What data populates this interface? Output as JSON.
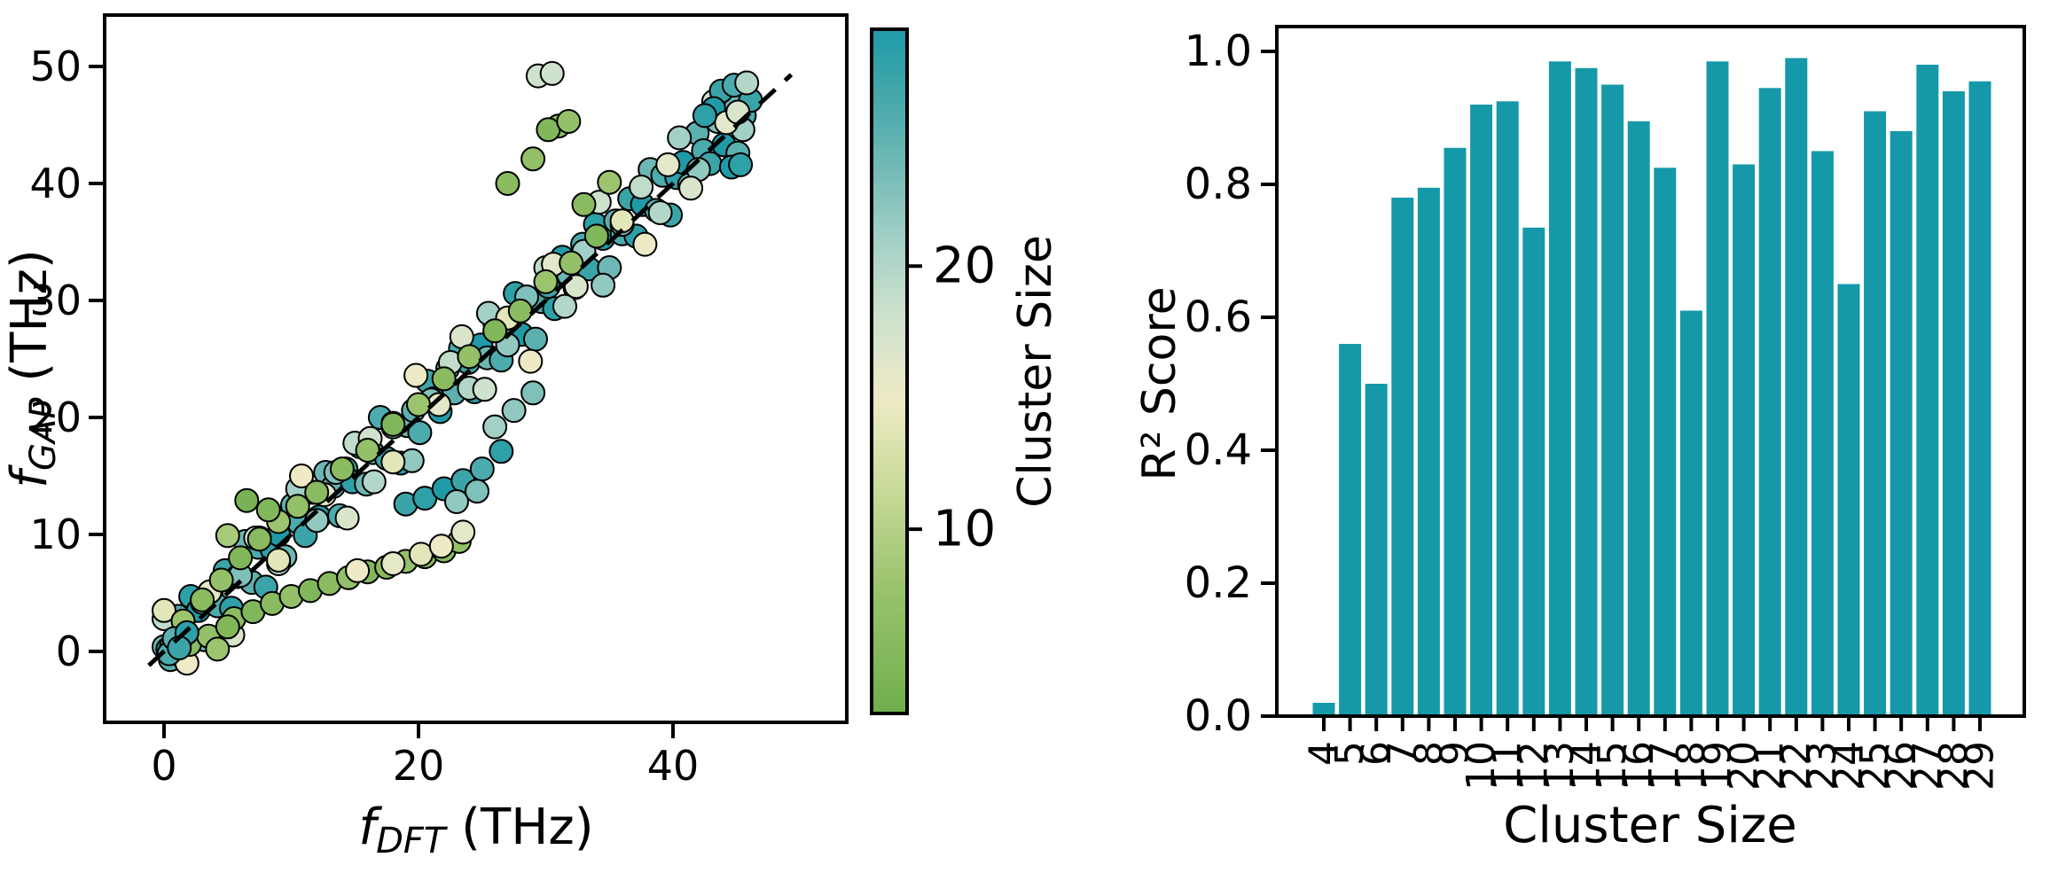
{
  "page": {
    "background": "#ffffff",
    "accent_teal": "#1599a8",
    "edge_color": "#000000"
  },
  "colorbar": {
    "label": "Cluster Size",
    "ticks": [
      10,
      20
    ],
    "range": [
      3,
      29
    ],
    "colormap_stops": [
      [
        3,
        "#6fae4d"
      ],
      [
        8,
        "#9cc46f"
      ],
      [
        12,
        "#cedd9e"
      ],
      [
        15,
        "#eeeac6"
      ],
      [
        18,
        "#cfe2cd"
      ],
      [
        21,
        "#a3d0c6"
      ],
      [
        24,
        "#6db8b4"
      ],
      [
        27,
        "#3ba4a8"
      ],
      [
        29,
        "#1f9ba8"
      ]
    ]
  },
  "chart_data": [
    {
      "type": "scatter",
      "xlabel_f": "f",
      "xlabel_sub": "DFT",
      "xlabel_unit": " (THz)",
      "ylabel_f": "f",
      "ylabel_sub": "GAP",
      "ylabel_unit": " (THz)",
      "xticks": [
        0,
        20,
        40
      ],
      "yticks": [
        0,
        10,
        20,
        30,
        40,
        50
      ],
      "xlim": [
        -4.7,
        53.7
      ],
      "ylim": [
        -6.1,
        54.4
      ],
      "identity_line": {
        "style": "dashed",
        "color": "#000000",
        "from": -1.2,
        "to": 49.3
      },
      "marker": {
        "radius_px": 13,
        "edge_color": "#000000",
        "edge_width": 2
      },
      "points": [
        [
          0,
          0.4,
          24
        ],
        [
          0.5,
          -0.7,
          25
        ],
        [
          1.1,
          3,
          26
        ],
        [
          1.6,
          0.9,
          27
        ],
        [
          2.1,
          4.7,
          28
        ],
        [
          2.7,
          3.5,
          29
        ],
        [
          3.2,
          1,
          24
        ],
        [
          3.7,
          5,
          25
        ],
        [
          4.2,
          3.9,
          26
        ],
        [
          4.8,
          6.9,
          27
        ],
        [
          5.3,
          3.7,
          28
        ],
        [
          5.8,
          6.4,
          29
        ],
        [
          6.4,
          9.4,
          24
        ],
        [
          6.9,
          5.9,
          25
        ],
        [
          7.4,
          8.9,
          26
        ],
        [
          8,
          5.5,
          27
        ],
        [
          8.5,
          8.7,
          28
        ],
        [
          9,
          10,
          29
        ],
        [
          9.5,
          8.1,
          24
        ],
        [
          10.1,
          12.5,
          25
        ],
        [
          10.6,
          11,
          26
        ],
        [
          11.1,
          9.9,
          27
        ],
        [
          11.7,
          13.6,
          28
        ],
        [
          12.2,
          11.5,
          29
        ],
        [
          12.7,
          15.3,
          24
        ],
        [
          13.3,
          14.1,
          25
        ],
        [
          13.8,
          11.6,
          26
        ],
        [
          14.3,
          15.6,
          27
        ],
        [
          14.8,
          14.5,
          28
        ],
        [
          15.4,
          17.5,
          29
        ],
        [
          15.9,
          14.3,
          24
        ],
        [
          16.4,
          17,
          25
        ],
        [
          17,
          20,
          26
        ],
        [
          17.5,
          16.5,
          27
        ],
        [
          18,
          19.5,
          28
        ],
        [
          18.6,
          16.1,
          29
        ],
        [
          19.1,
          19.3,
          24
        ],
        [
          19.6,
          20.6,
          25
        ],
        [
          20.1,
          18.7,
          26
        ],
        [
          20.7,
          23.1,
          27
        ],
        [
          21.2,
          21.6,
          28
        ],
        [
          21.7,
          20.5,
          29
        ],
        [
          22.3,
          24.2,
          24
        ],
        [
          22.8,
          22.1,
          25
        ],
        [
          23.3,
          25.9,
          26
        ],
        [
          23.9,
          24.7,
          27
        ],
        [
          24.4,
          22.2,
          28
        ],
        [
          24.9,
          26.2,
          29
        ],
        [
          25.4,
          25.1,
          24
        ],
        [
          26,
          28.1,
          25
        ],
        [
          26.5,
          24.9,
          26
        ],
        [
          27,
          27.6,
          27
        ],
        [
          27.6,
          30.6,
          28
        ],
        [
          28.1,
          27.1,
          29
        ],
        [
          28.6,
          30.1,
          24
        ],
        [
          29.2,
          26.7,
          25
        ],
        [
          29.7,
          29.9,
          26
        ],
        [
          30.2,
          31.2,
          27
        ],
        [
          30.7,
          29.3,
          28
        ],
        [
          31.3,
          33.7,
          29
        ],
        [
          31.8,
          32.2,
          24
        ],
        [
          32.3,
          31.1,
          25
        ],
        [
          32.9,
          34.8,
          26
        ],
        [
          33.4,
          32.7,
          27
        ],
        [
          33.9,
          36.5,
          28
        ],
        [
          34.5,
          35.3,
          29
        ],
        [
          35,
          32.8,
          24
        ],
        [
          35.5,
          36.8,
          25
        ],
        [
          36,
          35.7,
          26
        ],
        [
          36.6,
          38.7,
          27
        ],
        [
          37.1,
          35.5,
          28
        ],
        [
          37.6,
          38.2,
          29
        ],
        [
          38.2,
          41.2,
          24
        ],
        [
          38.7,
          37.7,
          25
        ],
        [
          39.2,
          40.7,
          26
        ],
        [
          39.8,
          37.3,
          27
        ],
        [
          40.3,
          40.5,
          28
        ],
        [
          40.8,
          41.8,
          29
        ],
        [
          41.3,
          39.9,
          24
        ],
        [
          41.9,
          44.3,
          25
        ],
        [
          42.4,
          42.8,
          26
        ],
        [
          42.9,
          41.7,
          27
        ],
        [
          43.5,
          46.1,
          28
        ],
        [
          44,
          43.3,
          29
        ],
        [
          44.5,
          47.1,
          24
        ],
        [
          45.1,
          42.6,
          25
        ],
        [
          45.6,
          45.8,
          26
        ],
        [
          46.1,
          47.1,
          27
        ],
        [
          0,
          2.8,
          19
        ],
        [
          1.5,
          -0.5,
          20
        ],
        [
          3,
          4.2,
          21
        ],
        [
          4.5,
          1.3,
          22
        ],
        [
          6,
          6.5,
          23
        ],
        [
          7.5,
          9.7,
          19
        ],
        [
          9,
          7.5,
          20
        ],
        [
          10.5,
          13.9,
          21
        ],
        [
          12,
          11.2,
          22
        ],
        [
          13.5,
          15.3,
          23
        ],
        [
          15,
          17.8,
          19
        ],
        [
          16.5,
          14.5,
          20
        ],
        [
          18,
          19.2,
          21
        ],
        [
          19.5,
          16.3,
          22
        ],
        [
          21,
          21.5,
          23
        ],
        [
          22.5,
          24.7,
          19
        ],
        [
          24,
          22.5,
          20
        ],
        [
          25.5,
          28.9,
          21
        ],
        [
          27,
          26.2,
          22
        ],
        [
          28.5,
          30.3,
          23
        ],
        [
          30,
          32.8,
          19
        ],
        [
          31.5,
          29.5,
          20
        ],
        [
          33,
          34.2,
          21
        ],
        [
          34.5,
          31.3,
          22
        ],
        [
          36,
          36.5,
          23
        ],
        [
          37.5,
          39.7,
          19
        ],
        [
          39,
          37.5,
          20
        ],
        [
          40.5,
          43.9,
          21
        ],
        [
          42,
          41.2,
          22
        ],
        [
          43.5,
          45.3,
          23
        ],
        [
          0,
          3.5,
          14
        ],
        [
          1.8,
          -1,
          15
        ],
        [
          3.6,
          5.1,
          16
        ],
        [
          5.4,
          1.4,
          17
        ],
        [
          7.2,
          9.7,
          18
        ],
        [
          9,
          7.8,
          14
        ],
        [
          10.8,
          15,
          15
        ],
        [
          12.6,
          13.4,
          16
        ],
        [
          14.4,
          11.4,
          17
        ],
        [
          16.2,
          18.2,
          18
        ],
        [
          18,
          16.2,
          14
        ],
        [
          19.8,
          23.6,
          15
        ],
        [
          21.6,
          21.1,
          16
        ],
        [
          23.4,
          26.9,
          17
        ],
        [
          25.2,
          22.4,
          18
        ],
        [
          27,
          28.5,
          14
        ],
        [
          28.8,
          24.8,
          15
        ],
        [
          30.6,
          33.1,
          16
        ],
        [
          32.4,
          31.2,
          17
        ],
        [
          34.2,
          38.4,
          18
        ],
        [
          36,
          36.8,
          14
        ],
        [
          37.8,
          34.8,
          15
        ],
        [
          39.6,
          41.6,
          16
        ],
        [
          41.4,
          39.6,
          17
        ],
        [
          43.2,
          47,
          18
        ],
        [
          5.5,
          2.8,
          6
        ],
        [
          7,
          3.4,
          5
        ],
        [
          8.5,
          4.1,
          6
        ],
        [
          10,
          4.7,
          7
        ],
        [
          11.5,
          5.2,
          5
        ],
        [
          13,
          5.8,
          6
        ],
        [
          14.5,
          6.3,
          7
        ],
        [
          16,
          6.8,
          5
        ],
        [
          17.5,
          7.2,
          6
        ],
        [
          19,
          7.7,
          7
        ],
        [
          20.5,
          8.1,
          5
        ],
        [
          22,
          8.6,
          6
        ],
        [
          23.2,
          9.4,
          7
        ],
        [
          15.2,
          6.9,
          15
        ],
        [
          18,
          7.5,
          16
        ],
        [
          20.2,
          8.3,
          14
        ],
        [
          21.8,
          9,
          15
        ],
        [
          23.5,
          10.2,
          16
        ],
        [
          1.5,
          2.6,
          8
        ],
        [
          3,
          4.4,
          6
        ],
        [
          4.5,
          6.1,
          7
        ],
        [
          6,
          8,
          5
        ],
        [
          7.5,
          9.6,
          6
        ],
        [
          9,
          11.1,
          8
        ],
        [
          10.5,
          12.4,
          7
        ],
        [
          12,
          13.6,
          6
        ],
        [
          6.5,
          12.9,
          4
        ],
        [
          8.2,
          12.1,
          5
        ],
        [
          5,
          9.9,
          9
        ],
        [
          14,
          15.6,
          6
        ],
        [
          16,
          17.2,
          7
        ],
        [
          18,
          19.4,
          5
        ],
        [
          20,
          21.1,
          8
        ],
        [
          22,
          23.3,
          6
        ],
        [
          24,
          25.2,
          7
        ],
        [
          26,
          27.4,
          5
        ],
        [
          28,
          29.1,
          6
        ],
        [
          30,
          31.6,
          8
        ],
        [
          32,
          33.2,
          7
        ],
        [
          34,
          35.5,
          5
        ],
        [
          27,
          40,
          6
        ],
        [
          29,
          42.1,
          7
        ],
        [
          31,
          44.9,
          6
        ],
        [
          30.2,
          44.6,
          5
        ],
        [
          31.8,
          45.3,
          7
        ],
        [
          33,
          38.2,
          6
        ],
        [
          35,
          40.1,
          8
        ],
        [
          2,
          0.6,
          6
        ],
        [
          3.5,
          1.3,
          7
        ],
        [
          5,
          2.1,
          5
        ],
        [
          4.2,
          0.2,
          8
        ],
        [
          29.4,
          49.2,
          18
        ],
        [
          30.5,
          49.4,
          18
        ],
        [
          44.6,
          41.4,
          29
        ],
        [
          45.3,
          41.6,
          28
        ],
        [
          43.8,
          47.9,
          27
        ],
        [
          44.8,
          48.4,
          26
        ],
        [
          43.2,
          46.4,
          29
        ],
        [
          45.5,
          44.6,
          21
        ],
        [
          44.2,
          45.2,
          16
        ],
        [
          45.1,
          46.1,
          17
        ],
        [
          42.5,
          45.8,
          28
        ],
        [
          45.8,
          48.6,
          20
        ],
        [
          19,
          12.6,
          27
        ],
        [
          20.5,
          13.1,
          28
        ],
        [
          22,
          13.9,
          29
        ],
        [
          23.5,
          14.6,
          27
        ],
        [
          25,
          15.6,
          26
        ],
        [
          26.5,
          17.1,
          28
        ],
        [
          23,
          12.8,
          22
        ],
        [
          24.6,
          13.7,
          23
        ],
        [
          26,
          19.2,
          21
        ],
        [
          27.5,
          20.6,
          22
        ],
        [
          29,
          22.1,
          23
        ],
        [
          0.3,
          0.2,
          29
        ],
        [
          0.6,
          0.5,
          28
        ],
        [
          1,
          0.8,
          27
        ],
        [
          0.4,
          -0.2,
          26
        ],
        [
          1.4,
          1.2,
          29
        ],
        [
          0.8,
          1.1,
          25
        ],
        [
          1.8,
          1.6,
          28
        ],
        [
          1.2,
          0.3,
          27
        ]
      ]
    },
    {
      "type": "bar",
      "xlabel": "Cluster Size",
      "ylabel": "R² Score",
      "categories": [
        4,
        5,
        6,
        7,
        8,
        9,
        10,
        11,
        12,
        13,
        14,
        15,
        16,
        17,
        18,
        19,
        20,
        21,
        22,
        23,
        24,
        25,
        26,
        27,
        28,
        29
      ],
      "values": [
        0.02,
        0.56,
        0.5,
        0.78,
        0.795,
        0.855,
        0.92,
        0.925,
        0.735,
        0.985,
        0.975,
        0.95,
        0.895,
        0.825,
        0.61,
        0.985,
        0.83,
        0.945,
        0.99,
        0.85,
        0.65,
        0.91,
        0.88,
        0.98,
        0.94,
        0.955
      ],
      "yticks": [
        0.0,
        0.2,
        0.4,
        0.6,
        0.8,
        1.0
      ],
      "ylim": [
        0,
        1.037
      ],
      "bar_color": "#1599a8",
      "grid": false,
      "legend": null
    }
  ]
}
